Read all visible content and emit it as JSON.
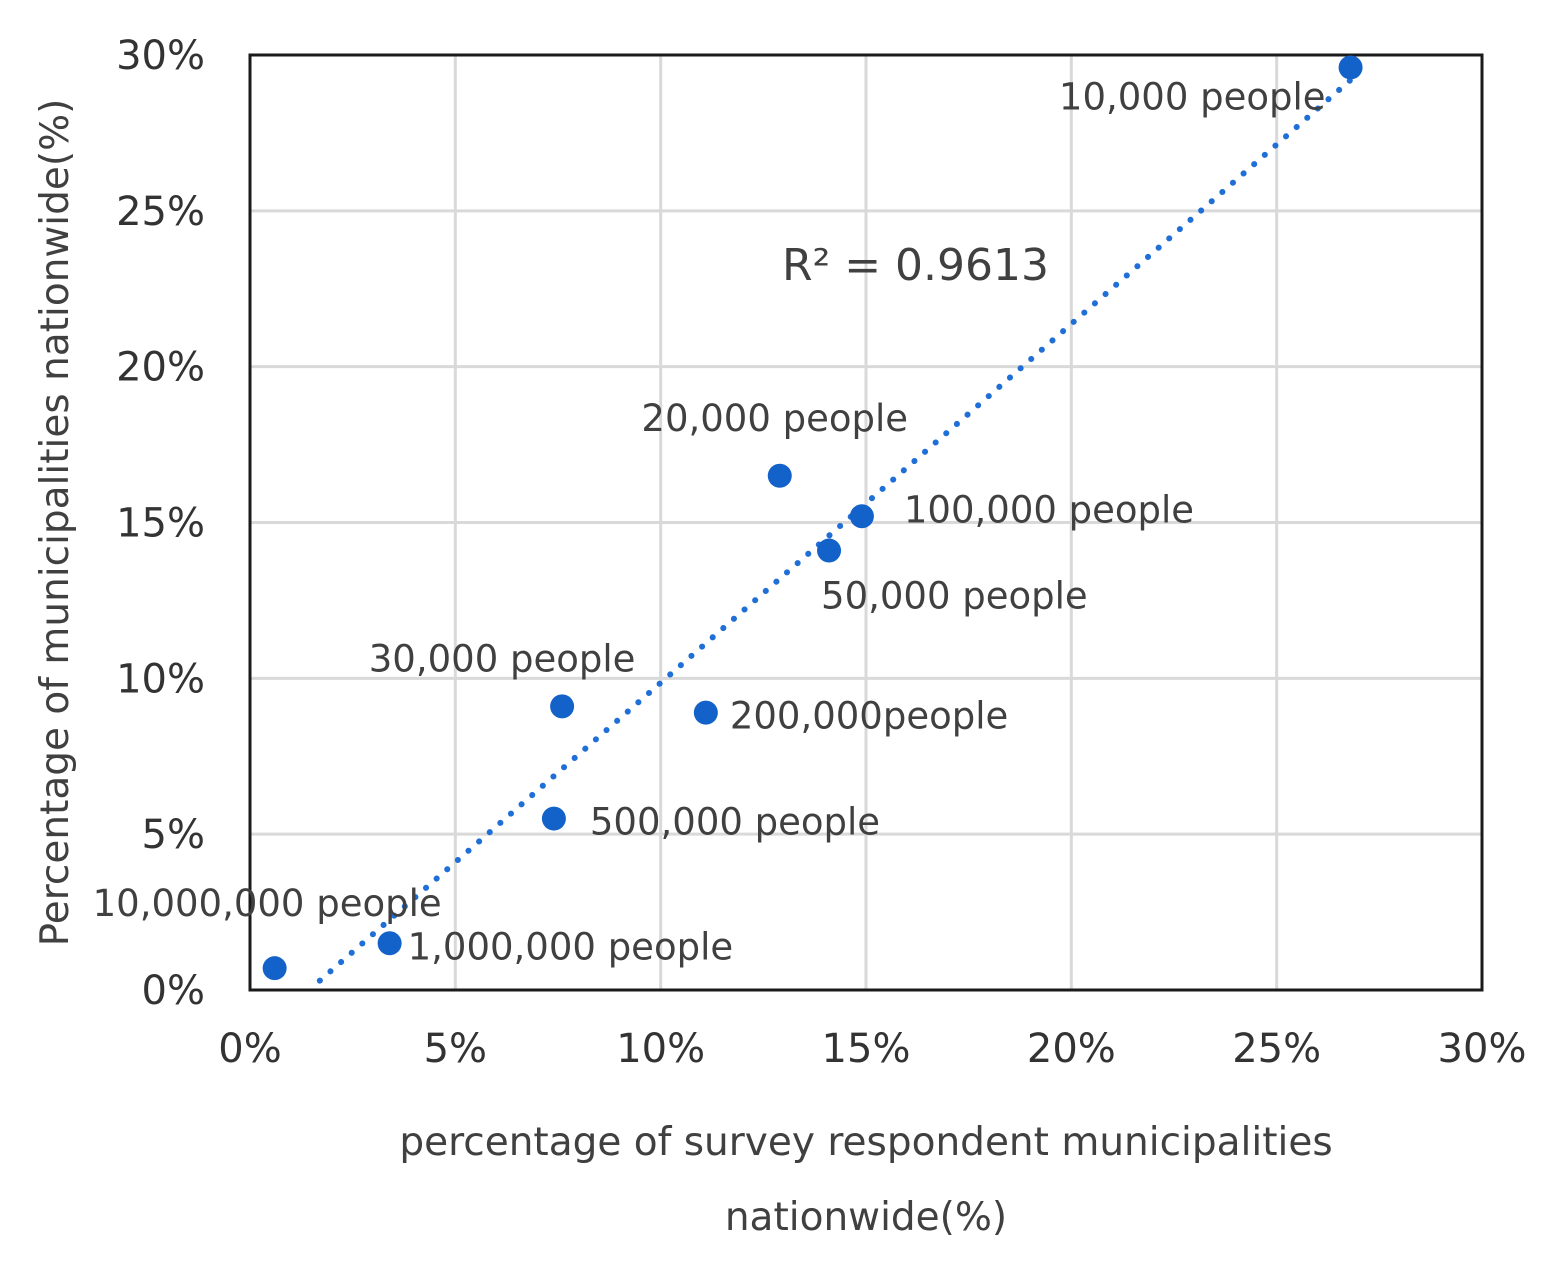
{
  "chart_data": {
    "type": "scatter",
    "title": "",
    "xlabel": "percentage of survey respondent municipalities nationwide(%)",
    "xlabel_lines": [
      "percentage of survey respondent municipalities",
      "nationwide(%)"
    ],
    "ylabel": "Percentage of municipalities nationwide(%)",
    "xlim": [
      0,
      30
    ],
    "ylim": [
      0,
      30
    ],
    "x_ticks": [
      0,
      5,
      10,
      15,
      20,
      25,
      30
    ],
    "y_ticks": [
      0,
      5,
      10,
      15,
      20,
      25,
      30
    ],
    "x_tick_labels": [
      "0%",
      "5%",
      "10%",
      "15%",
      "20%",
      "25%",
      "30%"
    ],
    "y_tick_labels": [
      "0%",
      "5%",
      "10%",
      "15%",
      "20%",
      "25%",
      "30%"
    ],
    "grid": true,
    "legend": "none",
    "point_color": "#1262c9",
    "trendline_color": "#1f6fd6",
    "points": [
      {
        "label": "10,000 people",
        "x": 26.8,
        "y": 29.6
      },
      {
        "label": "20,000 people",
        "x": 12.9,
        "y": 16.5
      },
      {
        "label": "100,000 people",
        "x": 14.9,
        "y": 15.2
      },
      {
        "label": "50,000 people",
        "x": 14.1,
        "y": 14.1
      },
      {
        "label": "30,000 people",
        "x": 7.6,
        "y": 9.1
      },
      {
        "label": "200,000people",
        "x": 11.1,
        "y": 8.9
      },
      {
        "label": "500,000 people",
        "x": 7.4,
        "y": 5.5
      },
      {
        "label": "10,000,000 people",
        "x": 0.6,
        "y": 0.7
      },
      {
        "label": "1,000,000 people",
        "x": 3.4,
        "y": 1.5
      }
    ],
    "trendline": {
      "type": "linear",
      "r2_text": "R² = 0.9613",
      "x_start": 1.7,
      "x_end": 26.8,
      "y_at_start": 0.3,
      "y_at_end": 29.2
    }
  }
}
